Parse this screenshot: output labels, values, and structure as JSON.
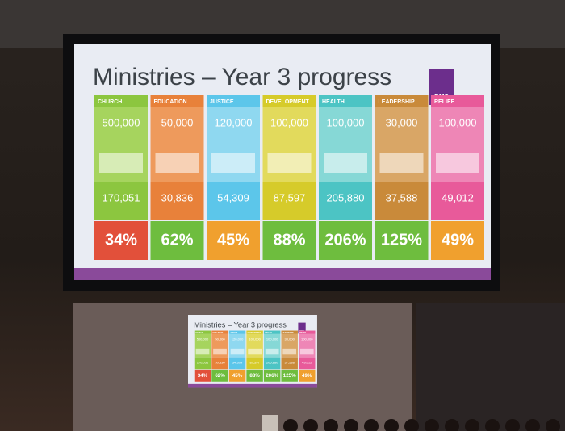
{
  "slide": {
    "title": "Ministries – Year 3 progress",
    "logo": "BMS",
    "columns": [
      {
        "label": "CHURCH",
        "target": "500,000",
        "achieved": "170,051",
        "percent": "34%"
      },
      {
        "label": "EDUCATION",
        "target": "50,000",
        "achieved": "30,836",
        "percent": "62%"
      },
      {
        "label": "JUSTICE",
        "target": "120,000",
        "achieved": "54,309",
        "percent": "45%"
      },
      {
        "label": "DEVELOPMENT",
        "target": "100,000",
        "achieved": "87,597",
        "percent": "88%"
      },
      {
        "label": "HEALTH",
        "target": "100,000",
        "achieved": "205,880",
        "percent": "206%"
      },
      {
        "label": "LEADERSHIP",
        "target": "30,000",
        "achieved": "37,588",
        "percent": "125%"
      },
      {
        "label": "RELIEF",
        "target": "100,000",
        "achieved": "49,012",
        "percent": "49%"
      }
    ]
  }
}
